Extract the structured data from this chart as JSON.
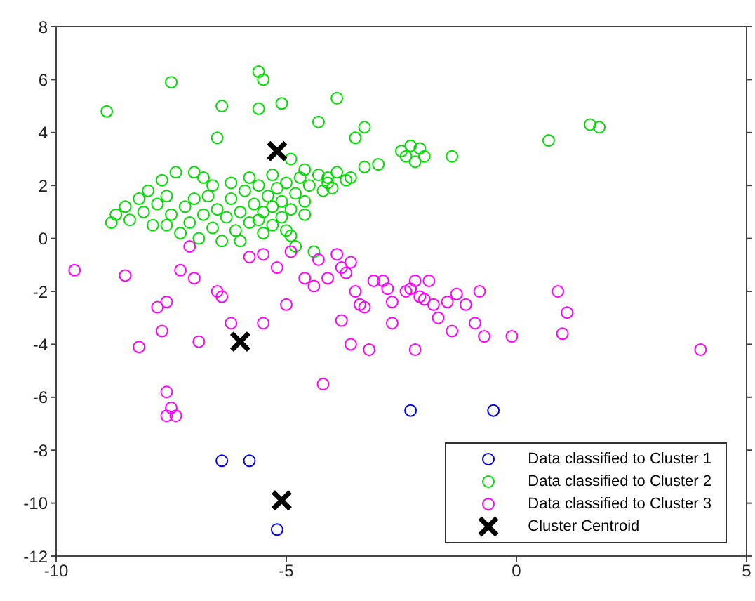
{
  "chart_data": {
    "type": "scatter",
    "xlim": [
      -10,
      5
    ],
    "ylim": [
      -12,
      8
    ],
    "xticks": [
      -10,
      -5,
      0,
      5
    ],
    "yticks": [
      -12,
      -10,
      -8,
      -6,
      -4,
      -2,
      0,
      2,
      4,
      6,
      8
    ],
    "legend": "bottom right",
    "marker": "circle",
    "series": [
      {
        "name": "Data classified to Cluster 1",
        "color": "#0000ff",
        "x": [
          -6.4,
          -5.8,
          -5.2,
          -2.3,
          -0.5
        ],
        "values": [
          -8.4,
          -8.4,
          -11,
          -6.5,
          -6.5
        ]
      },
      {
        "name": "Data classified to Cluster 2",
        "color": "#00dd00",
        "x": [
          -8.9,
          -7.5,
          -5.6,
          -5.5,
          -6.4,
          -5.6,
          -5.1,
          -3.9,
          -6.5,
          -4.3,
          -3.5,
          -3.3,
          -2.3,
          -2.4,
          -2.0,
          -1.4,
          0.7,
          1.6,
          1.8,
          -4.9,
          -4.6,
          -4.1,
          -3.9,
          -3.3,
          -3.0,
          -2.5,
          -2.2,
          -2.1,
          -8.8,
          -8.7,
          -8.5,
          -8.4,
          -8.2,
          -8.1,
          -8.0,
          -7.9,
          -7.8,
          -7.7,
          -7.6,
          -7.5,
          -7.4,
          -7.3,
          -7.2,
          -7.1,
          -7.0,
          -6.9,
          -6.8,
          -6.7,
          -6.6,
          -6.5,
          -6.4,
          -6.3,
          -6.2,
          -6.1,
          -6.0,
          -5.9,
          -5.8,
          -5.7,
          -5.6,
          -5.5,
          -5.5,
          -5.4,
          -5.3,
          -5.3,
          -5.2,
          -5.1,
          -5.1,
          -5.0,
          -5.0,
          -4.9,
          -4.8,
          -4.8,
          -4.7,
          -4.6,
          -4.5,
          -4.4,
          -4.3,
          -4.2,
          -4.1,
          -4.0,
          -3.7,
          -3.6,
          -6.6,
          -6.0,
          -5.8,
          -6.8,
          -7.0,
          -5.3,
          -4.6,
          -4.9,
          -5.6,
          -6.2,
          -7.6
        ],
        "values": [
          4.8,
          5.9,
          6.3,
          6.0,
          5.0,
          4.9,
          5.1,
          5.3,
          3.8,
          4.4,
          3.8,
          4.2,
          3.5,
          3.1,
          3.1,
          3.1,
          3.7,
          4.3,
          4.2,
          3.0,
          2.6,
          2.3,
          2.5,
          2.7,
          2.8,
          3.3,
          2.9,
          3.4,
          0.6,
          0.9,
          1.2,
          0.7,
          1.5,
          1.0,
          1.8,
          0.5,
          1.3,
          2.2,
          1.6,
          0.9,
          2.5,
          0.2,
          1.2,
          0.6,
          1.5,
          0.0,
          0.9,
          1.6,
          0.4,
          1.1,
          -0.1,
          0.8,
          1.5,
          0.3,
          1.0,
          1.8,
          0.6,
          1.3,
          2.0,
          0.2,
          1.0,
          1.6,
          0.5,
          1.2,
          1.9,
          0.8,
          1.4,
          2.1,
          0.3,
          1.1,
          1.7,
          -0.3,
          2.3,
          1.4,
          2.0,
          -0.5,
          2.4,
          1.8,
          2.1,
          1.9,
          2.2,
          2.3,
          2.0,
          -0.1,
          2.3,
          2.3,
          2.5,
          2.4,
          0.9,
          0.1,
          0.7,
          2.1,
          0.5
        ]
      },
      {
        "name": "Data classified to Cluster 3",
        "color": "#ff00ff",
        "x": [
          -9.6,
          -8.5,
          -8.2,
          -7.8,
          -7.6,
          -7.7,
          -7.3,
          -7.1,
          -7.0,
          -6.9,
          -6.5,
          -6.4,
          -6.2,
          -5.5,
          -5.8,
          -5.5,
          -5.2,
          -4.9,
          -5.0,
          -4.4,
          -4.1,
          -4.6,
          -4.3,
          -3.9,
          -3.8,
          -3.7,
          -3.6,
          -3.5,
          -3.4,
          -3.3,
          -3.1,
          -3.8,
          -3.6,
          -3.2,
          -4.2,
          -7.6,
          -7.5,
          -7.6,
          -7.4,
          -2.9,
          -2.8,
          -2.7,
          -2.7,
          -2.2,
          -2.4,
          -2.1,
          -1.9,
          -1.8,
          -1.5,
          -1.3,
          -1.1,
          -0.8,
          -0.9,
          -1.4,
          -1.7,
          -2.2,
          -0.7,
          -0.1,
          0.9,
          1.1,
          1.0,
          4.0,
          -2.3,
          -2.0
        ],
        "values": [
          -1.2,
          -1.4,
          -4.1,
          -2.6,
          -2.4,
          -3.5,
          -1.2,
          -0.3,
          -1.5,
          -3.9,
          -2.0,
          -2.2,
          -3.2,
          -3.2,
          -0.7,
          -0.6,
          -1.1,
          -0.5,
          -2.5,
          -1.8,
          -1.5,
          -1.5,
          -0.8,
          -0.6,
          -1.1,
          -1.3,
          -0.9,
          -2.0,
          -2.5,
          -2.6,
          -1.6,
          -3.1,
          -4.0,
          -4.2,
          -5.5,
          -5.8,
          -6.4,
          -6.7,
          -6.7,
          -1.6,
          -1.9,
          -2.4,
          -3.2,
          -1.6,
          -2.0,
          -2.2,
          -1.6,
          -2.5,
          -2.4,
          -2.1,
          -2.5,
          -2.0,
          -3.2,
          -3.5,
          -3.0,
          -4.2,
          -3.7,
          -3.7,
          -2.0,
          -2.8,
          -3.6,
          -4.2,
          -1.9,
          -2.3
        ]
      },
      {
        "name": "Cluster Centroid",
        "color": "#000000",
        "marker": "cross",
        "x": [
          -5.2,
          -6.0,
          -5.1
        ],
        "values": [
          3.3,
          -3.9,
          -9.9
        ]
      }
    ]
  }
}
